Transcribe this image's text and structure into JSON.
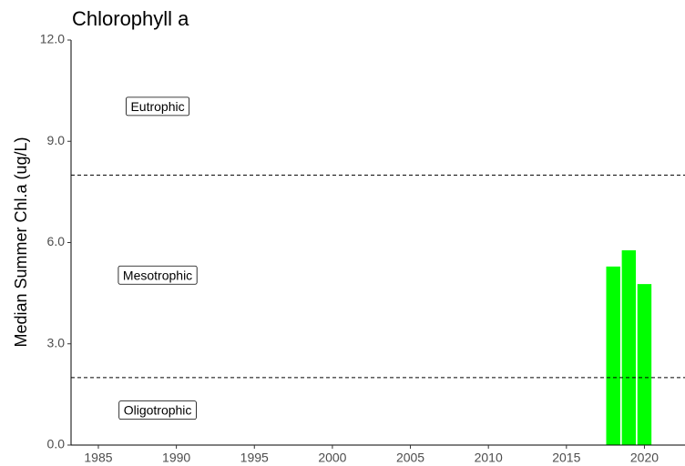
{
  "chart_data": {
    "type": "bar",
    "title": "Chlorophyll a",
    "ylabel": "Median Summer Chl.a (ug/L)",
    "x": [
      2018,
      2019,
      2020
    ],
    "values": [
      5.29,
      5.77,
      4.77
    ],
    "color": "#00ff00",
    "xlim": [
      1983.25,
      2022.6
    ],
    "xticks": [
      1985,
      1990,
      1995,
      2000,
      2005,
      2010,
      2015,
      2020
    ],
    "ylim": [
      0,
      12
    ],
    "yticks": [
      {
        "value": 0,
        "label": "0.0"
      },
      {
        "value": 3,
        "label": "3.0"
      },
      {
        "value": 6,
        "label": "6.0"
      },
      {
        "value": 9,
        "label": "9.0"
      },
      {
        "value": 12,
        "label": "12.0"
      }
    ],
    "reference_lines": [
      8,
      2
    ],
    "annotations": [
      {
        "text": "Eutrophic",
        "x": 1988.8,
        "y": 10
      },
      {
        "text": "Mesotrophic",
        "x": 1988.8,
        "y": 5
      },
      {
        "text": "Oligotrophic",
        "x": 1988.8,
        "y": 1
      }
    ],
    "grid": false
  }
}
